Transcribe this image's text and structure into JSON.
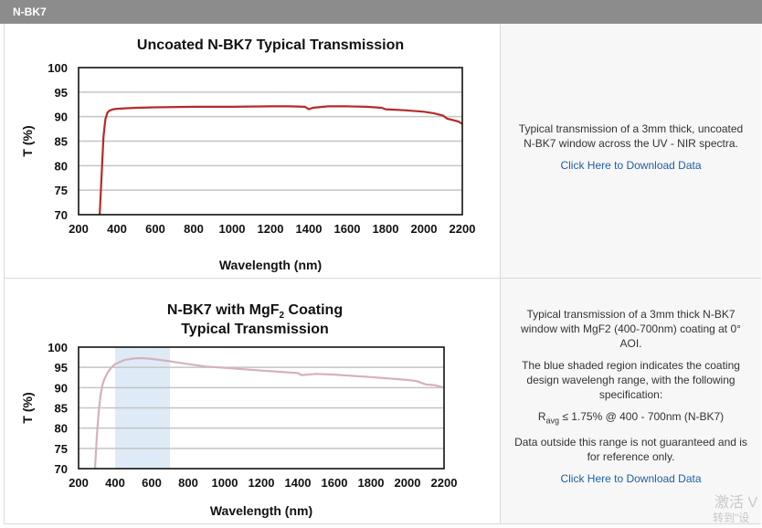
{
  "header": {
    "title": "N-BK7"
  },
  "rows": [
    {
      "description": [
        "Typical transmission of a 3mm thick, uncoated N-BK7 window across the UV - NIR spectra."
      ],
      "link": "Click Here to Download Data"
    },
    {
      "description": [
        "Typical transmission of a 3mm thick N-BK7 window with MgF2 (400-700nm) coating at 0° AOI.",
        "The blue shaded region indicates the coating design wavelengh range, with the following specification:"
      ],
      "spec": {
        "r": "R",
        "sub": "avg",
        "rest": " ≤ 1.75% @ 400 - 700nm (N-BK7)"
      },
      "note": "Data outside this range is not guaranteed and is for reference only.",
      "link": "Click Here to Download Data"
    }
  ],
  "watermark": {
    "line1": "激活 V",
    "line2": "转到\"设"
  },
  "chart_data": [
    {
      "type": "line",
      "title": "Uncoated N-BK7 Typical Transmission",
      "xlabel": "Wavelength (nm)",
      "ylabel": "T (%)",
      "xlim": [
        200,
        2200
      ],
      "ylim": [
        70,
        100
      ],
      "xticks": [
        "200",
        "400",
        "600",
        "800",
        "1000",
        "1200",
        "1400",
        "1600",
        "1800",
        "2000",
        "2200"
      ],
      "yticks": [
        "70",
        "75",
        "80",
        "85",
        "90",
        "95",
        "100"
      ],
      "grid": "horizontal",
      "color": "#b52a2a",
      "series": [
        {
          "x": [
            310,
            320,
            330,
            340,
            350,
            360,
            380,
            400,
            450,
            500,
            600,
            800,
            1000,
            1200,
            1300,
            1380,
            1400,
            1420,
            1500,
            1600,
            1700,
            1780,
            1800,
            1900,
            2000,
            2050,
            2100,
            2120,
            2150,
            2180,
            2200
          ],
          "y": [
            70,
            78,
            86,
            89.5,
            90.8,
            91.2,
            91.5,
            91.6,
            91.7,
            91.8,
            91.9,
            92,
            92,
            92.1,
            92.1,
            92,
            91.5,
            91.8,
            92.1,
            92.1,
            92,
            91.8,
            91.5,
            91.3,
            91,
            90.7,
            90.2,
            89.6,
            89.3,
            89.0,
            88.5
          ]
        }
      ]
    },
    {
      "type": "line",
      "title": [
        "N-BK7 with MgF",
        "2",
        " Coating"
      ],
      "title2": "Typical Transmission",
      "xlabel": "Wavelength (nm)",
      "ylabel": "T (%)",
      "xlim": [
        200,
        2200
      ],
      "ylim": [
        70,
        100
      ],
      "xticks": [
        "200",
        "400",
        "600",
        "800",
        "1000",
        "1200",
        "1400",
        "1600",
        "1800",
        "2000",
        "2200"
      ],
      "yticks": [
        "70",
        "75",
        "80",
        "85",
        "90",
        "95",
        "100"
      ],
      "grid": "horizontal",
      "shaded_region": [
        400,
        700
      ],
      "shade_color": "#deebf7",
      "color": "#d4b2bc",
      "series": [
        {
          "x": [
            290,
            300,
            310,
            320,
            330,
            340,
            360,
            380,
            400,
            450,
            500,
            550,
            600,
            700,
            800,
            900,
            1000,
            1200,
            1300,
            1400,
            1420,
            1500,
            1600,
            1800,
            2000,
            2050,
            2100,
            2150,
            2200
          ],
          "y": [
            70,
            78,
            84,
            88,
            90.5,
            92,
            93.8,
            95,
            95.8,
            96.8,
            97.2,
            97.3,
            97.1,
            96.5,
            95.8,
            95.2,
            94.9,
            94.2,
            93.9,
            93.6,
            93.1,
            93.4,
            93.2,
            92.6,
            91.9,
            91.6,
            90.8,
            90.6,
            90.0
          ]
        }
      ]
    }
  ]
}
